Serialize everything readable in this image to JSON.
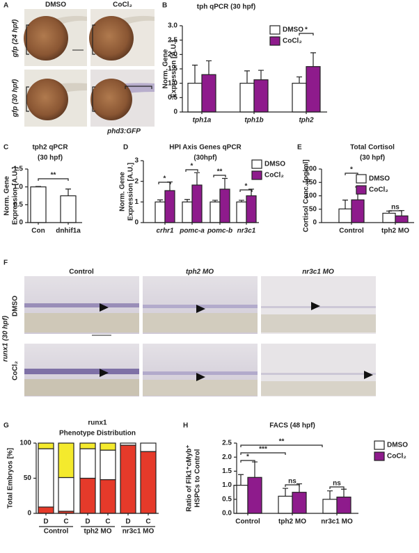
{
  "panel_a": {
    "letter": "A",
    "columns": [
      "DMSO",
      "CoCl₂"
    ],
    "rows": [
      "gfp (24 hpf)",
      "gfp (30 hpf)"
    ],
    "caption": "phd3:GFP"
  },
  "panel_f": {
    "letter": "F",
    "columns": [
      "Control",
      "tph2 MO",
      "nr3c1 MO"
    ],
    "rows": [
      "DMSO",
      "CoCl₂"
    ],
    "side_label": "runx1 (30 hpf)"
  },
  "chart_data": [
    {
      "type": "bar",
      "panel": "B",
      "title": "tph qPCR (30 hpf)",
      "ylabel": [
        "Norm. Gene",
        "Expression [A.U.]"
      ],
      "categories": [
        "tph1a",
        "tph1b",
        "tph2"
      ],
      "legend": "upper right",
      "series": [
        {
          "name": "DMSO",
          "color": "#ffffff",
          "values": [
            1.0,
            1.0,
            1.0
          ],
          "errors": [
            0.63,
            0.43,
            0.22
          ]
        },
        {
          "name": "CoCl₂",
          "color": "#8e1b8c",
          "values": [
            1.3,
            1.12,
            1.58
          ],
          "errors": [
            0.48,
            0.33,
            0.48
          ]
        }
      ],
      "ylim": [
        0,
        3
      ],
      "yticks": [
        0,
        0.5,
        {
          "value": 1,
          "label": "1.0"
        },
        1.5,
        {
          "value": 2,
          "label": "2.0"
        },
        2.5,
        {
          "value": 3,
          "label": "3.0"
        }
      ],
      "annotations": [
        "*"
      ]
    },
    {
      "type": "bar",
      "panel": "C",
      "title": "tph2 qPCR",
      "subtitle": "(30 hpf)",
      "ylabel": [
        "Norm. Gene",
        "Expression [A.U.]"
      ],
      "categories": [
        "Con",
        "dnhif1a"
      ],
      "color": "#ffffff",
      "values": [
        1.0,
        0.75
      ],
      "errors": [
        0.01,
        0.19
      ],
      "ylim": [
        0,
        1.5
      ],
      "yticks": [
        0,
        0.5,
        {
          "value": 1,
          "label": "1.0"
        },
        1.5
      ],
      "annotations": [
        "**"
      ]
    },
    {
      "type": "bar",
      "panel": "D",
      "title": "HPI Axis Genes qPCR",
      "subtitle": "(30hpf)",
      "ylabel": [
        "Norm. Gene",
        "Expression [A.U.]"
      ],
      "categories": [
        "crhr1",
        "pomc-a",
        "pomc-b",
        "nr3c1"
      ],
      "legend": "upper right",
      "series": [
        {
          "name": "DMSO",
          "color": "#ffffff",
          "values": [
            1.0,
            1.0,
            1.0,
            1.0
          ],
          "errors": [
            0.1,
            0.12,
            0.08,
            0.08
          ]
        },
        {
          "name": "CoCl₂",
          "color": "#8e1b8c",
          "values": [
            1.55,
            1.82,
            1.62,
            1.3
          ],
          "errors": [
            0.42,
            0.6,
            0.52,
            0.32
          ]
        }
      ],
      "ylim": [
        0,
        3
      ],
      "yticks": [
        0,
        1,
        2,
        3
      ],
      "annotations": [
        "*",
        "*",
        "**",
        "*"
      ]
    },
    {
      "type": "bar",
      "panel": "E",
      "title": "Total Cortisol",
      "subtitle": "(30 hpf)",
      "ylabel": [
        "Cortisol Conc. [pg/ml]"
      ],
      "categories": [
        "Control",
        "tph2 MO"
      ],
      "legend": "upper right",
      "series": [
        {
          "name": "DMSO",
          "color": "#ffffff",
          "values": [
            51,
            35
          ],
          "errors": [
            33,
            8
          ]
        },
        {
          "name": "CoCl₂",
          "color": "#8e1b8c",
          "values": [
            85,
            25
          ],
          "errors": [
            48,
            20
          ]
        }
      ],
      "ylim": [
        0,
        200
      ],
      "yticks": [
        0,
        50,
        100,
        150,
        200
      ],
      "annotations": [
        "*",
        "ns"
      ]
    },
    {
      "type": "bar",
      "stacked": true,
      "panel": "G",
      "title": "runx1",
      "subtitle": "Phenotype Distribution",
      "ylabel": [
        "Total Embryos [%]"
      ],
      "categories": [
        "D",
        "C",
        "D",
        "C",
        "D",
        "C"
      ],
      "groups": [
        "Control",
        "tph2 MO",
        "nr3c1 MO"
      ],
      "series": [
        {
          "color": "#e53a2a",
          "values": [
            9,
            3,
            50,
            48,
            97,
            88
          ]
        },
        {
          "color": "#ffffff",
          "values": [
            83,
            48,
            42,
            42,
            3,
            12
          ]
        },
        {
          "color": "#f4ea2d",
          "values": [
            8,
            49,
            8,
            10,
            0,
            0
          ]
        }
      ],
      "ylim": [
        0,
        100
      ],
      "yticks": [
        0,
        50,
        100
      ]
    },
    {
      "type": "bar",
      "panel": "H",
      "title": "FACS (48 hpf)",
      "ylabel": [
        "Ratio of Flk1⁺cMyb⁺",
        "HSPCs to Control"
      ],
      "categories": [
        "Control",
        "tph2 MO",
        "nr3c1 MO"
      ],
      "legend": "upper right",
      "series": [
        {
          "name": "DMSO",
          "color": "#ffffff",
          "values": [
            1.0,
            0.61,
            0.5
          ],
          "errors": [
            0.38,
            0.28,
            0.3
          ]
        },
        {
          "name": "CoCl₂",
          "color": "#8e1b8c",
          "values": [
            1.28,
            0.75,
            0.58
          ],
          "errors": [
            0.55,
            0.3,
            0.28
          ]
        }
      ],
      "ylim": [
        0,
        2.5
      ],
      "yticks": [
        {
          "value": 0,
          "label": "0.0"
        },
        0.5,
        {
          "value": 1,
          "label": "1.0"
        },
        1.5,
        {
          "value": 2,
          "label": "2.0"
        },
        2.5
      ],
      "annotations": [
        "*",
        "***",
        "**",
        "ns",
        "ns"
      ]
    }
  ]
}
